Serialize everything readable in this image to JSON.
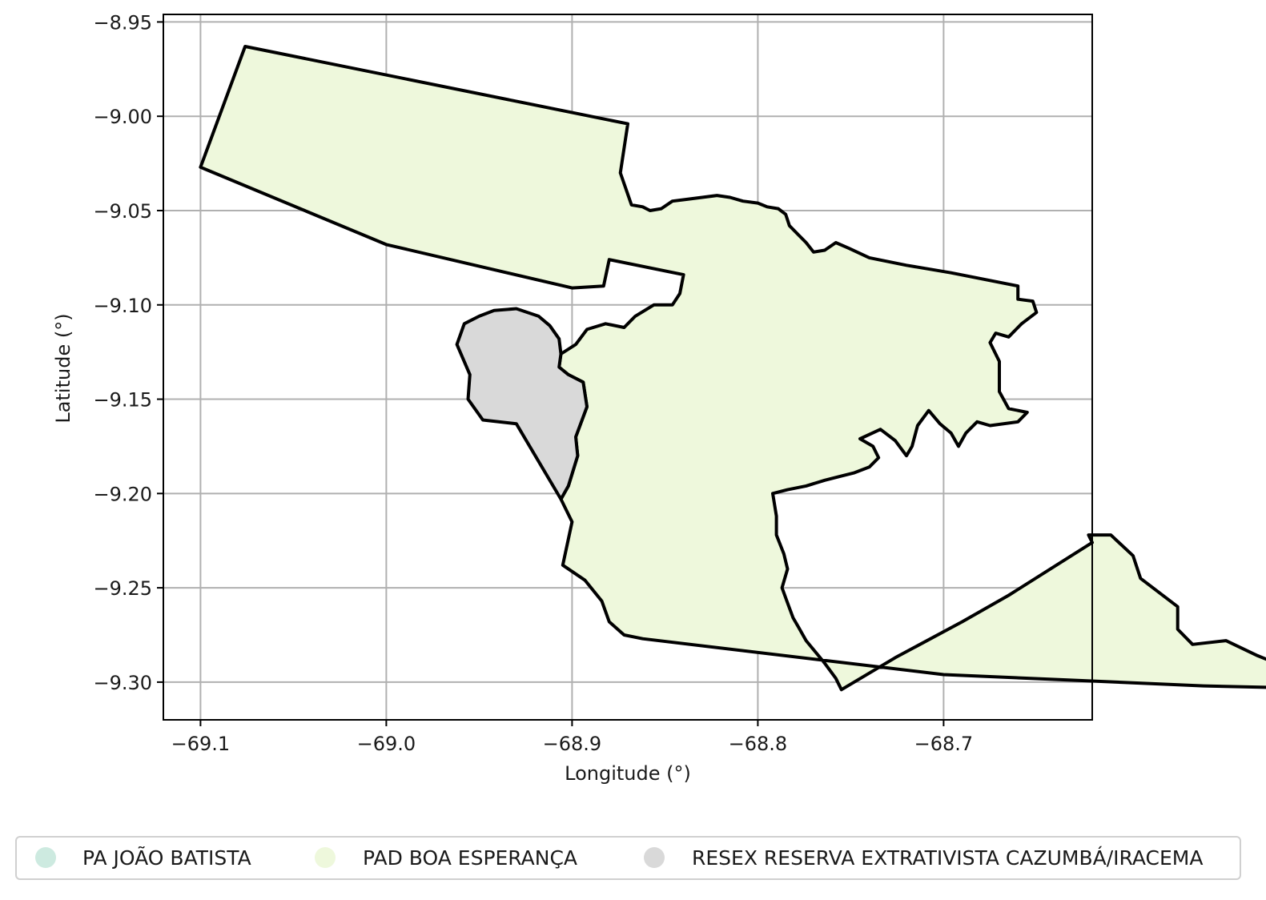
{
  "chart_data": {
    "type": "map",
    "xlabel": "Longitude (°)",
    "ylabel": "Latitude (°)",
    "xlim": [
      -69.12,
      -68.62
    ],
    "ylim": [
      -9.32,
      -8.946
    ],
    "x_ticks": [
      -69.1,
      -69.0,
      -68.9,
      -68.8,
      -68.7
    ],
    "x_tick_labels": [
      "−69.1",
      "−69.0",
      "−68.9",
      "−68.8",
      "−68.7"
    ],
    "y_ticks": [
      -8.95,
      -9.0,
      -9.05,
      -9.1,
      -9.15,
      -9.2,
      -9.25,
      -9.3
    ],
    "y_tick_labels": [
      "−8.95",
      "−9.00",
      "−9.05",
      "−9.10",
      "−9.15",
      "−9.20",
      "−9.25",
      "−9.30"
    ],
    "grid": true,
    "legend_position": "bottom",
    "legend": [
      {
        "label": "PA JOÃO BATISTA",
        "color": "#cdeae0"
      },
      {
        "label": "PAD BOA ESPERANÇA",
        "color": "#eef8dc"
      },
      {
        "label": "RESEX RESERVA EXTRATIVISTA CAZUMBÁ/IRACEMA",
        "color": "#d9d9d9"
      }
    ],
    "regions": [
      {
        "name": "PAD BOA ESPERANÇA",
        "fill": "#eef8dc",
        "coordinates": [
          [
            -69.076,
            -8.963
          ],
          [
            -68.87,
            -9.004
          ],
          [
            -68.874,
            -9.03
          ],
          [
            -68.868,
            -9.047
          ],
          [
            -68.862,
            -9.048
          ],
          [
            -68.858,
            -9.05
          ],
          [
            -68.852,
            -9.049
          ],
          [
            -68.846,
            -9.045
          ],
          [
            -68.838,
            -9.044
          ],
          [
            -68.83,
            -9.043
          ],
          [
            -68.822,
            -9.042
          ],
          [
            -68.815,
            -9.043
          ],
          [
            -68.808,
            -9.045
          ],
          [
            -68.8,
            -9.046
          ],
          [
            -68.795,
            -9.048
          ],
          [
            -68.789,
            -9.049
          ],
          [
            -68.785,
            -9.052
          ],
          [
            -68.783,
            -9.058
          ],
          [
            -68.778,
            -9.063
          ],
          [
            -68.774,
            -9.067
          ],
          [
            -68.77,
            -9.072
          ],
          [
            -68.764,
            -9.071
          ],
          [
            -68.758,
            -9.067
          ],
          [
            -68.751,
            -9.07
          ],
          [
            -68.74,
            -9.075
          ],
          [
            -68.72,
            -9.079
          ],
          [
            -68.696,
            -9.083
          ],
          [
            -68.66,
            -9.09
          ],
          [
            -68.66,
            -9.097
          ],
          [
            -68.652,
            -9.098
          ],
          [
            -68.65,
            -9.104
          ],
          [
            -68.658,
            -9.11
          ],
          [
            -68.665,
            -9.117
          ],
          [
            -68.672,
            -9.115
          ],
          [
            -68.675,
            -9.12
          ],
          [
            -68.67,
            -9.13
          ],
          [
            -68.67,
            -9.146
          ],
          [
            -68.665,
            -9.155
          ],
          [
            -68.655,
            -9.157
          ],
          [
            -68.66,
            -9.162
          ],
          [
            -68.675,
            -9.164
          ],
          [
            -68.682,
            -9.162
          ],
          [
            -68.688,
            -9.168
          ],
          [
            -68.692,
            -9.175
          ],
          [
            -68.696,
            -9.168
          ],
          [
            -68.702,
            -9.163
          ],
          [
            -68.708,
            -9.156
          ],
          [
            -68.714,
            -9.164
          ],
          [
            -68.717,
            -9.175
          ],
          [
            -68.72,
            -9.18
          ],
          [
            -68.726,
            -9.172
          ],
          [
            -68.734,
            -9.166
          ],
          [
            -68.745,
            -9.171
          ],
          [
            -68.738,
            -9.175
          ],
          [
            -68.735,
            -9.181
          ],
          [
            -68.74,
            -9.186
          ],
          [
            -68.748,
            -9.189
          ],
          [
            -68.756,
            -9.191
          ],
          [
            -68.764,
            -9.193
          ],
          [
            -68.774,
            -9.196
          ],
          [
            -68.784,
            -9.198
          ],
          [
            -68.792,
            -9.2
          ],
          [
            -68.79,
            -9.212
          ],
          [
            -68.79,
            -9.222
          ],
          [
            -68.786,
            -9.232
          ],
          [
            -68.784,
            -9.24
          ],
          [
            -68.787,
            -9.25
          ],
          [
            -68.784,
            -9.258
          ],
          [
            -68.781,
            -9.266
          ],
          [
            -68.778,
            -9.271
          ],
          [
            -68.774,
            -9.278
          ],
          [
            -68.764,
            -9.29
          ],
          [
            -68.758,
            -9.298
          ],
          [
            -68.755,
            -9.304
          ],
          [
            -68.726,
            -9.287
          ],
          [
            -68.69,
            -9.268
          ],
          [
            -68.665,
            -9.254
          ],
          [
            -68.62,
            -9.226
          ],
          [
            -68.622,
            -9.222
          ],
          [
            -68.61,
            -9.222
          ],
          [
            -68.598,
            -9.233
          ],
          [
            -68.594,
            -9.245
          ],
          [
            -68.574,
            -9.26
          ],
          [
            -68.574,
            -9.272
          ],
          [
            -68.566,
            -9.28
          ],
          [
            -68.548,
            -9.278
          ],
          [
            -68.531,
            -9.286
          ],
          [
            -68.516,
            -9.292
          ],
          [
            -68.505,
            -9.302
          ],
          [
            -68.515,
            -9.303
          ],
          [
            -68.56,
            -9.302
          ],
          [
            -68.7,
            -9.296
          ],
          [
            -68.862,
            -9.277
          ],
          [
            -68.872,
            -9.275
          ],
          [
            -68.88,
            -9.268
          ],
          [
            -68.884,
            -9.257
          ],
          [
            -68.893,
            -9.246
          ],
          [
            -68.905,
            -9.238
          ],
          [
            -68.9,
            -9.215
          ],
          [
            -68.906,
            -9.203
          ],
          [
            -68.902,
            -9.196
          ],
          [
            -68.897,
            -9.18
          ],
          [
            -68.898,
            -9.17
          ],
          [
            -68.892,
            -9.154
          ],
          [
            -68.894,
            -9.141
          ],
          [
            -68.902,
            -9.137
          ],
          [
            -68.907,
            -9.133
          ],
          [
            -68.906,
            -9.126
          ],
          [
            -68.898,
            -9.121
          ],
          [
            -68.892,
            -9.113
          ],
          [
            -68.882,
            -9.11
          ],
          [
            -68.872,
            -9.112
          ],
          [
            -68.866,
            -9.106
          ],
          [
            -68.856,
            -9.1
          ],
          [
            -68.846,
            -9.1
          ],
          [
            -68.842,
            -9.094
          ],
          [
            -68.84,
            -9.084
          ],
          [
            -68.88,
            -9.076
          ],
          [
            -68.883,
            -9.09
          ],
          [
            -68.9,
            -9.091
          ],
          [
            -69.0,
            -9.068
          ],
          [
            -69.1,
            -9.027
          ]
        ]
      },
      {
        "name": "RESEX RESERVA EXTRATIVISTA CAZUMBÁ/IRACEMA",
        "fill": "#d9d9d9",
        "coordinates": [
          [
            -68.942,
            -9.103
          ],
          [
            -68.93,
            -9.102
          ],
          [
            -68.918,
            -9.106
          ],
          [
            -68.912,
            -9.111
          ],
          [
            -68.907,
            -9.118
          ],
          [
            -68.906,
            -9.126
          ],
          [
            -68.907,
            -9.133
          ],
          [
            -68.902,
            -9.137
          ],
          [
            -68.894,
            -9.141
          ],
          [
            -68.892,
            -9.154
          ],
          [
            -68.898,
            -9.17
          ],
          [
            -68.897,
            -9.18
          ],
          [
            -68.902,
            -9.196
          ],
          [
            -68.906,
            -9.203
          ],
          [
            -68.93,
            -9.163
          ],
          [
            -68.948,
            -9.161
          ],
          [
            -68.956,
            -9.15
          ],
          [
            -68.955,
            -9.137
          ],
          [
            -68.962,
            -9.121
          ],
          [
            -68.958,
            -9.11
          ],
          [
            -68.95,
            -9.106
          ]
        ]
      }
    ]
  }
}
